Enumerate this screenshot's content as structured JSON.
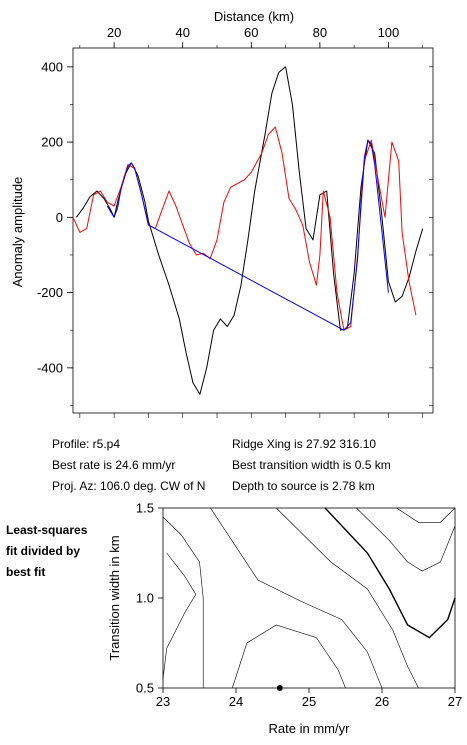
{
  "info": {
    "left": [
      "Profile: r5.p4",
      "Best rate is 24.6 mm/yr",
      "Proj. Az: 106.0 deg. CW of N"
    ],
    "right": [
      "Ridge Xing is 27.92 316.10",
      "Best transition width is 0.5 km",
      "Depth to source is   2.78 km"
    ]
  },
  "side_note": [
    "Least-squares",
    "fit divided by",
    "best fit"
  ],
  "chart_data": [
    {
      "type": "line",
      "title": "",
      "xlabel": "Distance (km)",
      "ylabel": "Anomaly amplitude",
      "xlim": [
        8,
        113
      ],
      "ylim": [
        -520,
        450
      ],
      "xticks": [
        20,
        40,
        60,
        80,
        100
      ],
      "yticks": [
        400,
        200,
        0,
        -200,
        -400
      ],
      "grid": false,
      "series": [
        {
          "color": "#000000",
          "points": [
            [
              9,
              0
            ],
            [
              11,
              25
            ],
            [
              13,
              55
            ],
            [
              15,
              70
            ],
            [
              17,
              50
            ],
            [
              19,
              20
            ],
            [
              20,
              0
            ],
            [
              21,
              40
            ],
            [
              23,
              110
            ],
            [
              25,
              145
            ],
            [
              27,
              110
            ],
            [
              29,
              40
            ],
            [
              30,
              -10
            ],
            [
              33,
              -100
            ],
            [
              36,
              -180
            ],
            [
              39,
              -270
            ],
            [
              41,
              -360
            ],
            [
              43,
              -440
            ],
            [
              45,
              -470
            ],
            [
              47,
              -400
            ],
            [
              49,
              -300
            ],
            [
              51,
              -270
            ],
            [
              53,
              -290
            ],
            [
              55,
              -260
            ],
            [
              57,
              -180
            ],
            [
              59,
              -60
            ],
            [
              61,
              70
            ],
            [
              64,
              220
            ],
            [
              66,
              330
            ],
            [
              68,
              385
            ],
            [
              70,
              400
            ],
            [
              72,
              300
            ],
            [
              74,
              120
            ],
            [
              76,
              -30
            ],
            [
              78,
              -60
            ],
            [
              80,
              60
            ],
            [
              82,
              70
            ],
            [
              84,
              -150
            ],
            [
              86,
              -300
            ],
            [
              88,
              -295
            ],
            [
              90,
              -150
            ],
            [
              92,
              80
            ],
            [
              94,
              205
            ],
            [
              96,
              170
            ],
            [
              98,
              10
            ],
            [
              100,
              -170
            ],
            [
              102,
              -225
            ],
            [
              104,
              -210
            ],
            [
              106,
              -160
            ],
            [
              108,
              -90
            ],
            [
              110,
              -30
            ]
          ]
        },
        {
          "color": "#ff0000",
          "points": [
            [
              8,
              0
            ],
            [
              10,
              -40
            ],
            [
              12,
              -30
            ],
            [
              14,
              60
            ],
            [
              16,
              70
            ],
            [
              18,
              40
            ],
            [
              20,
              30
            ],
            [
              22,
              80
            ],
            [
              24,
              140
            ],
            [
              26,
              130
            ],
            [
              28,
              60
            ],
            [
              30,
              -20
            ],
            [
              32,
              -30
            ],
            [
              34,
              20
            ],
            [
              36,
              70
            ],
            [
              38,
              30
            ],
            [
              40,
              -20
            ],
            [
              42,
              -70
            ],
            [
              44,
              -100
            ],
            [
              46,
              -95
            ],
            [
              48,
              -110
            ],
            [
              50,
              -60
            ],
            [
              52,
              40
            ],
            [
              54,
              80
            ],
            [
              56,
              90
            ],
            [
              58,
              100
            ],
            [
              60,
              120
            ],
            [
              63,
              170
            ],
            [
              65,
              220
            ],
            [
              67,
              240
            ],
            [
              69,
              170
            ],
            [
              71,
              50
            ],
            [
              73,
              20
            ],
            [
              75,
              -20
            ],
            [
              77,
              -120
            ],
            [
              79,
              -180
            ],
            [
              80,
              -100
            ],
            [
              81,
              70
            ],
            [
              83,
              0
            ],
            [
              85,
              -200
            ],
            [
              87,
              -300
            ],
            [
              89,
              -290
            ],
            [
              91,
              -100
            ],
            [
              93,
              150
            ],
            [
              95,
              205
            ],
            [
              97,
              100
            ],
            [
              99,
              0
            ],
            [
              101,
              200
            ],
            [
              103,
              150
            ],
            [
              104,
              -40
            ],
            [
              106,
              -170
            ],
            [
              108,
              -260
            ]
          ]
        },
        {
          "color": "#0000ff",
          "points": [
            [
              18,
              30
            ],
            [
              19,
              15
            ],
            [
              20,
              0
            ],
            [
              21,
              25
            ],
            [
              22,
              75
            ],
            [
              24,
              135
            ],
            [
              25,
              145
            ],
            [
              26,
              130
            ],
            [
              28,
              60
            ],
            [
              30,
              -20
            ],
            [
              87,
              -300
            ],
            [
              89,
              -280
            ],
            [
              91,
              -110
            ],
            [
              92,
              40
            ],
            [
              93,
              160
            ],
            [
              94,
              205
            ],
            [
              95,
              195
            ],
            [
              96,
              140
            ],
            [
              98,
              -30
            ],
            [
              100,
              -200
            ]
          ]
        }
      ]
    },
    {
      "type": "line",
      "title": "",
      "xlabel": "Rate in mm/yr",
      "ylabel": "Transition width in km",
      "xlim": [
        23,
        27
      ],
      "ylim": [
        0.5,
        1.5
      ],
      "xticks": [
        23,
        24,
        25,
        26,
        27
      ],
      "yticks": [
        0.5,
        1.0,
        1.5
      ],
      "grid": false,
      "best_fit_point": [
        24.6,
        0.5
      ],
      "contours": [
        {
          "bold": false,
          "points": [
            [
              23.55,
              0.5
            ],
            [
              23.55,
              1.0
            ],
            [
              23.5,
              1.2
            ],
            [
              23.25,
              1.35
            ],
            [
              23,
              1.45
            ]
          ]
        },
        {
          "bold": false,
          "points": [
            [
              23,
              0.55
            ],
            [
              23.05,
              0.72
            ],
            [
              23.3,
              0.92
            ],
            [
              23.45,
              1.02
            ],
            [
              23.3,
              1.12
            ],
            [
              23.05,
              1.25
            ]
          ]
        },
        {
          "bold": false,
          "points": [
            [
              23.95,
              0.5
            ],
            [
              24.15,
              0.75
            ],
            [
              24.55,
              0.85
            ],
            [
              25.1,
              0.78
            ],
            [
              25.4,
              0.6
            ],
            [
              25.5,
              0.5
            ]
          ]
        },
        {
          "bold": false,
          "points": [
            [
              23.65,
              1.5
            ],
            [
              24.3,
              1.1
            ],
            [
              24.9,
              0.98
            ],
            [
              25.45,
              0.88
            ],
            [
              25.8,
              0.7
            ],
            [
              26.0,
              0.5
            ]
          ]
        },
        {
          "bold": false,
          "points": [
            [
              24.55,
              1.5
            ],
            [
              25.3,
              1.2
            ],
            [
              25.8,
              1.05
            ],
            [
              26.15,
              0.82
            ],
            [
              26.35,
              0.62
            ],
            [
              26.5,
              0.5
            ]
          ]
        },
        {
          "bold": true,
          "points": [
            [
              25.22,
              1.5
            ],
            [
              25.8,
              1.25
            ],
            [
              26.1,
              1.05
            ],
            [
              26.35,
              0.85
            ],
            [
              26.65,
              0.78
            ],
            [
              26.9,
              0.88
            ],
            [
              27,
              1.0
            ]
          ]
        },
        {
          "bold": false,
          "points": [
            [
              25.65,
              1.5
            ],
            [
              26.1,
              1.32
            ],
            [
              26.35,
              1.2
            ],
            [
              26.55,
              1.15
            ],
            [
              26.8,
              1.2
            ],
            [
              27,
              1.4
            ]
          ]
        },
        {
          "bold": false,
          "points": [
            [
              26.2,
              1.5
            ],
            [
              26.5,
              1.42
            ],
            [
              26.8,
              1.42
            ],
            [
              27,
              1.5
            ]
          ]
        }
      ]
    }
  ]
}
